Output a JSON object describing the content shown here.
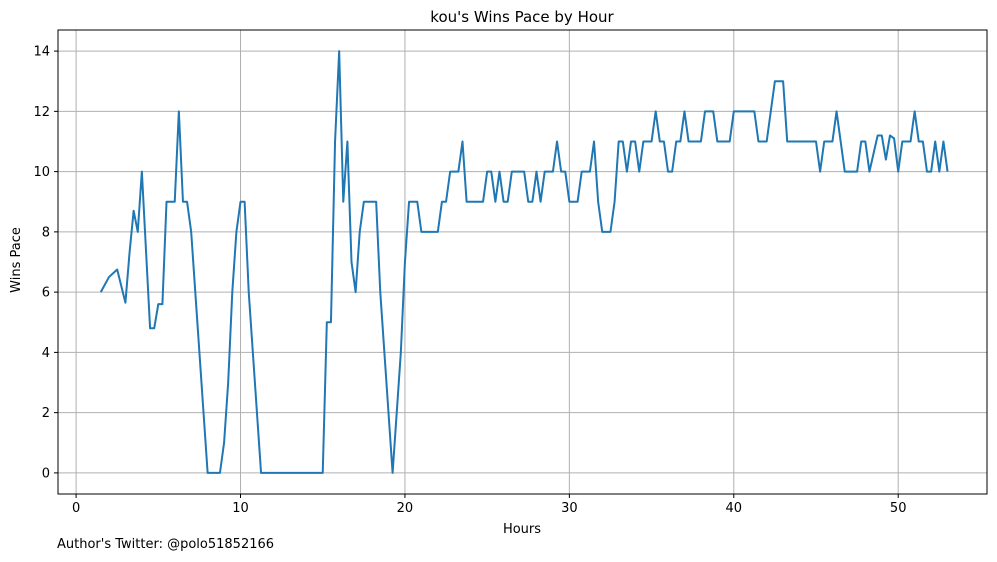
{
  "footer": {
    "credit": "Author's Twitter: @polo51852166"
  },
  "chart_data": {
    "type": "line",
    "title": "kou's Wins Pace by Hour",
    "xlabel": "Hours",
    "ylabel": "Wins Pace",
    "xlim": [
      -1.1,
      55.4
    ],
    "ylim": [
      -0.7,
      14.7
    ],
    "xticks": [
      0,
      10,
      20,
      30,
      40,
      50
    ],
    "yticks": [
      0,
      2,
      4,
      6,
      8,
      10,
      12,
      14
    ],
    "grid": true,
    "legend": "none",
    "series": [
      {
        "color": "#1f77b4",
        "x": [
          1.5,
          2,
          2.5,
          3,
          3.25,
          3.5,
          3.75,
          4,
          4.5,
          4.75,
          5,
          5.25,
          5.5,
          5.75,
          6,
          6.25,
          6.5,
          6.75,
          7,
          7.25,
          7.5,
          7.75,
          8,
          8.5,
          8.75,
          9,
          9.25,
          9.5,
          9.75,
          10,
          10.25,
          10.5,
          10.75,
          11,
          11.25,
          11.5,
          15,
          15.25,
          15.5,
          15.75,
          16,
          16.25,
          16.5,
          16.75,
          17,
          17.25,
          17.5,
          18,
          18.25,
          18.5,
          18.75,
          19,
          19.25,
          19.5,
          19.75,
          20,
          20.25,
          20.5,
          20.75,
          21,
          21.25,
          21.5,
          21.75,
          22,
          22.25,
          22.5,
          22.75,
          23,
          23.25,
          23.5,
          23.75,
          24,
          24.5,
          24.75,
          25,
          25.25,
          25.5,
          25.75,
          26,
          26.25,
          26.5,
          26.75,
          27,
          27.25,
          27.5,
          27.75,
          28,
          28.25,
          28.5,
          28.75,
          29,
          29.25,
          29.5,
          29.75,
          30,
          30.25,
          30.5,
          30.75,
          31,
          31.25,
          31.5,
          31.75,
          32,
          32.25,
          32.5,
          32.75,
          33,
          33.25,
          33.5,
          33.75,
          34,
          34.25,
          34.5,
          34.75,
          35,
          35.25,
          35.5,
          35.75,
          36,
          36.25,
          36.5,
          36.75,
          37,
          37.25,
          37.5,
          37.75,
          38,
          38.25,
          38.5,
          38.75,
          39,
          39.25,
          39.5,
          39.75,
          40,
          40.25,
          40.5,
          40.75,
          41,
          41.25,
          41.5,
          41.75,
          42,
          42.25,
          42.5,
          42.75,
          43,
          43.25,
          43.5,
          43.75,
          44,
          44.25,
          44.5,
          44.75,
          45,
          45.25,
          45.5,
          45.75,
          46,
          46.25,
          46.5,
          46.75,
          47,
          47.25,
          47.5,
          47.75,
          48,
          48.25,
          48.5,
          48.75,
          49,
          49.25,
          49.5,
          49.75,
          50,
          50.25,
          50.5,
          50.75,
          51,
          51.25,
          51.5,
          51.75,
          52,
          52.25,
          52.5,
          52.75,
          53
        ],
        "y": [
          6,
          6.5,
          6.75,
          5.65,
          7.3,
          8.7,
          8,
          10,
          4.8,
          4.8,
          5.6,
          5.6,
          9,
          9,
          9,
          12,
          9,
          9,
          8,
          6,
          4,
          2,
          0,
          0,
          0,
          1,
          3,
          6,
          8,
          9,
          9,
          6,
          4,
          2,
          0,
          0,
          0,
          5,
          5,
          11,
          14,
          9,
          11,
          7,
          6,
          8,
          9,
          9,
          9,
          6,
          4,
          2,
          0,
          2,
          4,
          7,
          9,
          9,
          9,
          8,
          8,
          8,
          8,
          8,
          9,
          9,
          10,
          10,
          10,
          11,
          9,
          9,
          9,
          9,
          10,
          10,
          9,
          10,
          9,
          9,
          10,
          10,
          10,
          10,
          9,
          9,
          10,
          9,
          10,
          10,
          10,
          11,
          10,
          10,
          9,
          9,
          9,
          10,
          10,
          10,
          11,
          9,
          8,
          8,
          8,
          9,
          11,
          11,
          10,
          11,
          11,
          10,
          11,
          11,
          11,
          12,
          11,
          11,
          10,
          10,
          11,
          11,
          12,
          11,
          11,
          11,
          11,
          12,
          12,
          12,
          11,
          11,
          11,
          11,
          12,
          12,
          12,
          12,
          12,
          12,
          11,
          11,
          11,
          12,
          13,
          13,
          13,
          11,
          11,
          11,
          11,
          11,
          11,
          11,
          11,
          10,
          11,
          11,
          11,
          12,
          11,
          10,
          10,
          10,
          10,
          11,
          11,
          10,
          10.6,
          11.2,
          11.2,
          10.4,
          11.2,
          11.1,
          10,
          11,
          11,
          11,
          12,
          11,
          11,
          10,
          10,
          11,
          10,
          11,
          10
        ]
      }
    ]
  }
}
